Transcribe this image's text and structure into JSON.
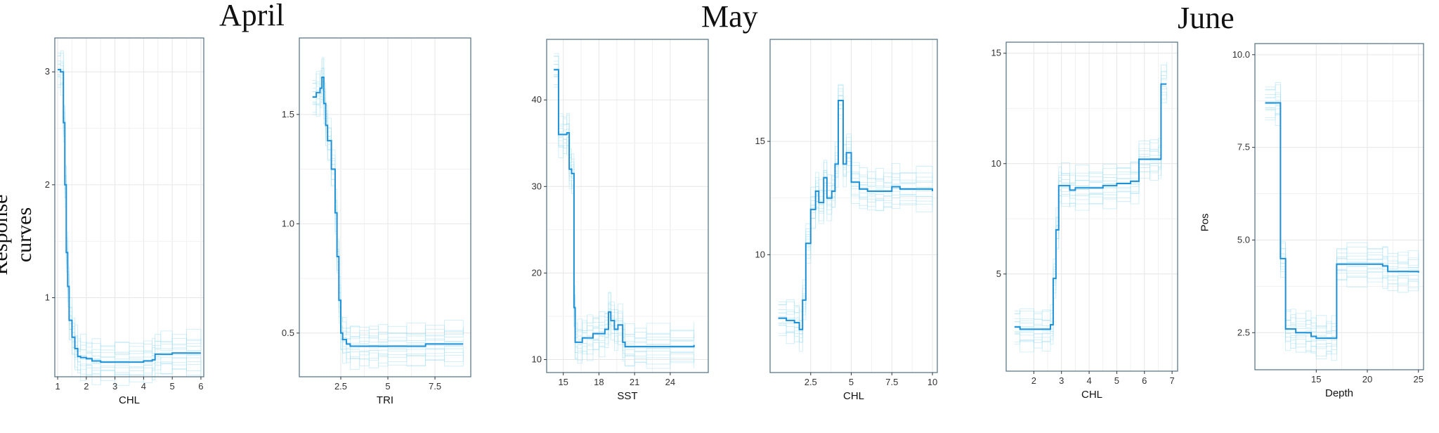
{
  "months": [
    "April",
    "May",
    "June"
  ],
  "ylabel_main": "Response curves",
  "colors": {
    "main": "#1e90d6",
    "band": "#9ddcf0",
    "grid": "#e6e6e6",
    "frame": "#4f6f80"
  },
  "chart_data": [
    {
      "type": "line",
      "xlabel": "CHL",
      "ylabel": "",
      "xlim": [
        0.9,
        6.1
      ],
      "ylim": [
        0.3,
        3.3
      ],
      "xticks": [
        1,
        2,
        3,
        4,
        5,
        6
      ],
      "yticks": [
        1,
        2,
        3
      ],
      "x": [
        1.0,
        1.1,
        1.2,
        1.25,
        1.3,
        1.35,
        1.4,
        1.5,
        1.6,
        1.7,
        1.8,
        2.0,
        2.2,
        2.5,
        3.0,
        3.5,
        4.0,
        4.3,
        4.4,
        4.6,
        5.0,
        5.5,
        6.0
      ],
      "y": [
        3.02,
        3.0,
        2.55,
        2.0,
        1.4,
        1.1,
        0.8,
        0.65,
        0.55,
        0.48,
        0.47,
        0.46,
        0.44,
        0.43,
        0.43,
        0.43,
        0.44,
        0.45,
        0.5,
        0.5,
        0.51,
        0.51,
        0.51
      ]
    },
    {
      "type": "line",
      "xlabel": "TRI",
      "ylabel": "",
      "xlim": [
        0.3,
        9.4
      ],
      "ylim": [
        0.3,
        1.85
      ],
      "xticks": [
        2.5,
        5.0,
        7.5
      ],
      "ytick_labels": [
        "0.5",
        "1.0",
        "1.5"
      ],
      "yticks": [
        0.5,
        1.0,
        1.5
      ],
      "x": [
        1.0,
        1.2,
        1.4,
        1.5,
        1.6,
        1.7,
        1.8,
        2.0,
        2.2,
        2.3,
        2.4,
        2.5,
        2.6,
        2.8,
        3.0,
        3.5,
        4.0,
        4.5,
        5.0,
        6.0,
        7.0,
        8.0,
        9.0
      ],
      "y": [
        1.58,
        1.6,
        1.62,
        1.67,
        1.55,
        1.45,
        1.38,
        1.25,
        1.05,
        0.85,
        0.65,
        0.5,
        0.47,
        0.45,
        0.44,
        0.44,
        0.44,
        0.44,
        0.44,
        0.44,
        0.45,
        0.45,
        0.45
      ]
    },
    {
      "type": "line",
      "xlabel": "SST",
      "ylabel": "",
      "xlim": [
        13.6,
        27.2
      ],
      "ylim": [
        8.5,
        47
      ],
      "xticks": [
        15,
        18,
        21,
        24
      ],
      "yticks": [
        10,
        20,
        30,
        40
      ],
      "x": [
        14.2,
        14.6,
        15.0,
        15.3,
        15.5,
        15.7,
        15.9,
        16.0,
        16.2,
        16.6,
        17.0,
        17.5,
        18.0,
        18.5,
        18.8,
        19.0,
        19.3,
        19.6,
        20.0,
        20.2,
        21.0,
        22.0,
        24.0,
        26.0
      ],
      "y": [
        43.5,
        36.0,
        36.0,
        36.2,
        32.0,
        31.5,
        16.0,
        12.0,
        12.0,
        12.5,
        12.5,
        13.0,
        13.0,
        13.5,
        15.5,
        14.5,
        13.5,
        14.0,
        12.0,
        11.5,
        11.5,
        11.5,
        11.5,
        11.7
      ]
    },
    {
      "type": "line",
      "xlabel": "CHL",
      "ylabel": "",
      "xlim": [
        0.0,
        10.3
      ],
      "ylim": [
        4.8,
        19.5
      ],
      "xticks": [
        2.5,
        5.0,
        7.5,
        10.0
      ],
      "yticks": [
        10,
        15
      ],
      "x": [
        0.5,
        1.0,
        1.5,
        1.8,
        2.0,
        2.2,
        2.5,
        2.8,
        3.0,
        3.3,
        3.5,
        3.8,
        4.0,
        4.2,
        4.5,
        4.7,
        5.0,
        5.5,
        6.0,
        6.5,
        7.0,
        7.5,
        8.0,
        9.0,
        10.0
      ],
      "y": [
        7.2,
        7.1,
        7.0,
        6.7,
        8.0,
        10.5,
        12.0,
        12.8,
        12.3,
        13.4,
        12.5,
        12.8,
        14.0,
        16.8,
        14.0,
        14.5,
        13.2,
        12.9,
        12.8,
        12.8,
        12.8,
        13.0,
        12.9,
        12.9,
        12.8
      ]
    },
    {
      "type": "line",
      "xlabel": "CHL",
      "ylabel": "",
      "xlim": [
        1.0,
        7.2
      ],
      "ylim": [
        0.6,
        15.5
      ],
      "xticks": [
        2,
        3,
        4,
        5,
        6,
        7
      ],
      "yticks": [
        5,
        10,
        15
      ],
      "x": [
        1.3,
        1.5,
        2.0,
        2.3,
        2.6,
        2.7,
        2.8,
        2.9,
        3.0,
        3.3,
        3.5,
        4.0,
        4.5,
        5.0,
        5.5,
        5.8,
        6.2,
        6.5,
        6.6,
        6.8
      ],
      "y": [
        2.6,
        2.5,
        2.5,
        2.5,
        2.7,
        4.8,
        7.0,
        9.0,
        9.0,
        8.8,
        8.9,
        8.9,
        9.0,
        9.1,
        9.2,
        10.2,
        10.2,
        10.2,
        13.6,
        13.6
      ]
    },
    {
      "type": "line",
      "xlabel": "Depth",
      "ylabel": "Pos",
      "xlim": [
        9.0,
        25.5
      ],
      "ylim": [
        1.5,
        10.3
      ],
      "xticks": [
        15,
        20,
        25
      ],
      "ytick_labels": [
        "2.5",
        "5.0",
        "7.5",
        "10.0"
      ],
      "yticks": [
        2.5,
        5.0,
        7.5,
        10.0
      ],
      "x": [
        10.0,
        11.0,
        11.5,
        12.0,
        12.5,
        13.0,
        14.0,
        14.5,
        15.0,
        16.0,
        16.5,
        17.0,
        18.0,
        20.0,
        21.5,
        22.0,
        23.0,
        24.0,
        25.0
      ],
      "y": [
        8.7,
        8.7,
        4.5,
        2.6,
        2.6,
        2.5,
        2.5,
        2.4,
        2.35,
        2.35,
        2.35,
        4.35,
        4.35,
        4.35,
        4.3,
        4.15,
        4.15,
        4.15,
        4.12
      ]
    }
  ]
}
